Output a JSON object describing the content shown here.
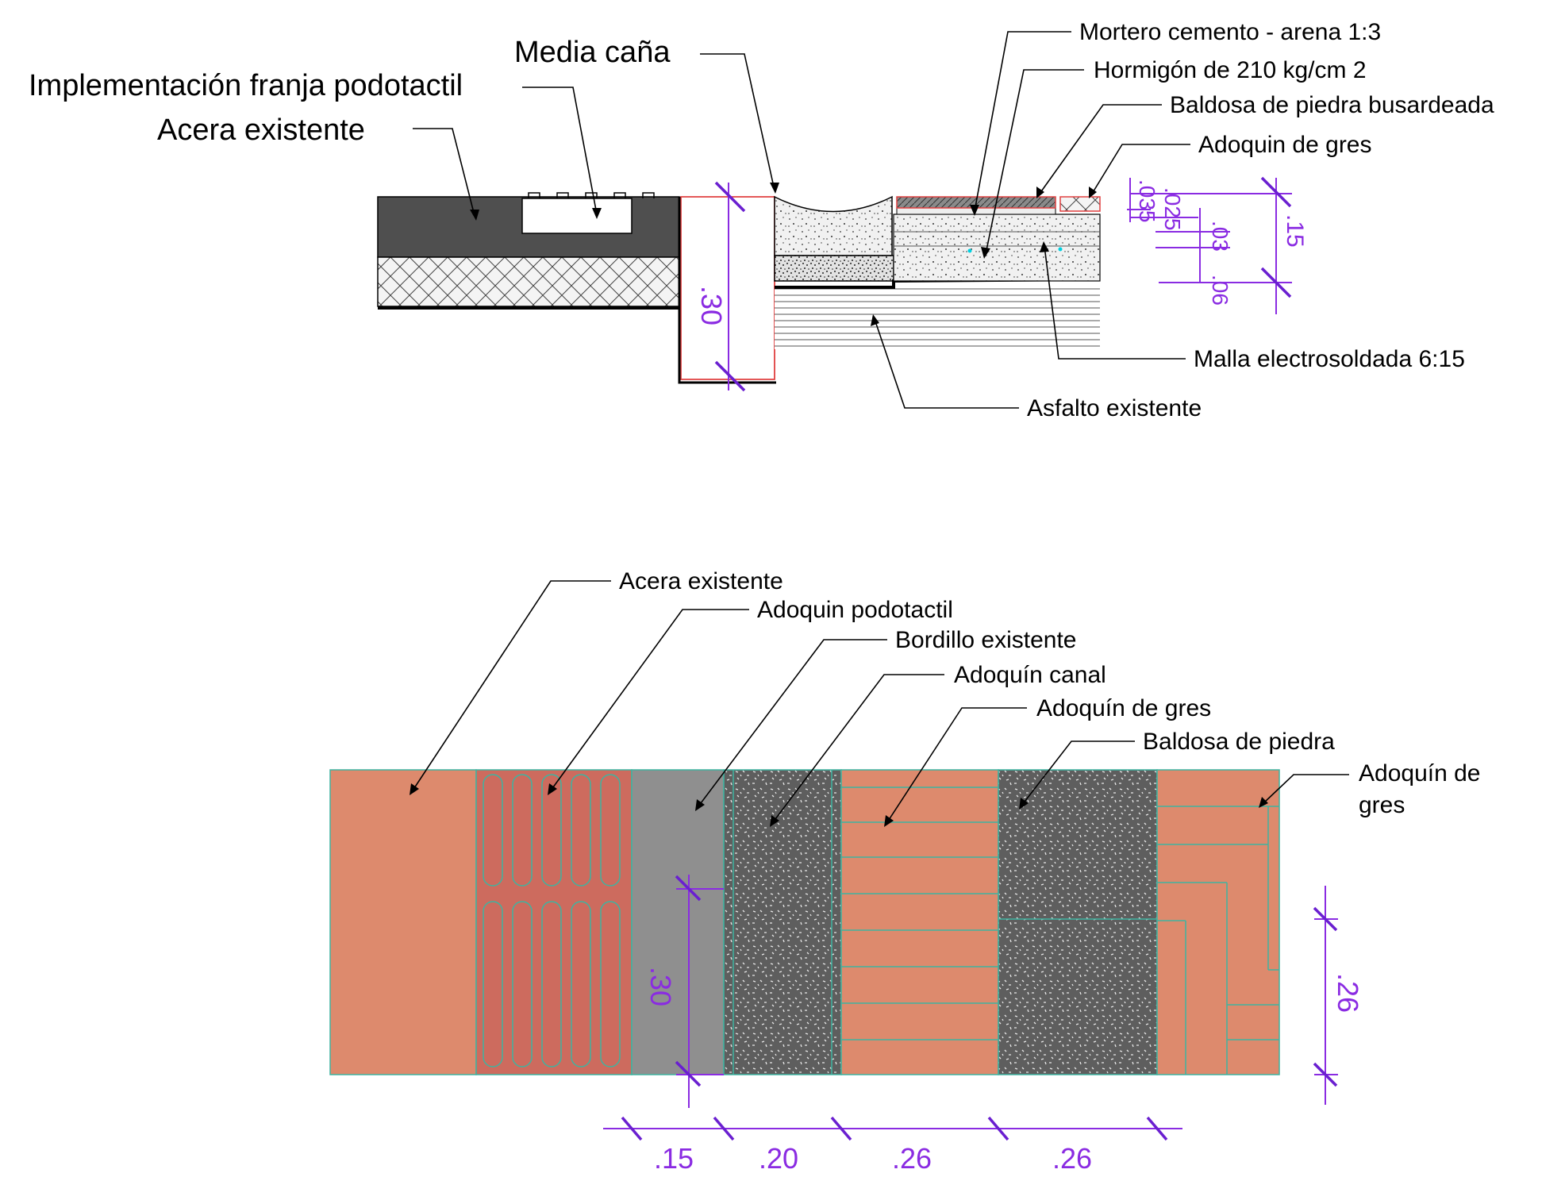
{
  "section": {
    "labels": {
      "implementacion": "Implementación franja podotactil",
      "media_cana": "Media caña",
      "acera": "Acera existente",
      "mortero": "Mortero cemento - arena 1:3",
      "hormigon": "Hormigón de 210 kg/cm 2",
      "baldosa": "Baldosa de piedra busardeada",
      "adoquin": "Adoquin de gres",
      "malla": "Malla electrosoldada 6:15",
      "asfalto": "Asfalto existente"
    },
    "dims": {
      "curb_height": ".30",
      "d035": ".035",
      "d025": ".025",
      "d03": ".03",
      "d06": ".06",
      "d15": ".15"
    }
  },
  "plan": {
    "labels": {
      "acera": "Acera existente",
      "podotactil": "Adoquin podotactil",
      "bordillo": "Bordillo existente",
      "canal": "Adoquín canal",
      "gres1": "Adoquín  de gres",
      "baldosa": "Baldosa de piedra",
      "gres2_l1": "Adoquín de",
      "gres2_l2": "gres"
    },
    "dims": {
      "height_left": ".30",
      "height_right": ".26",
      "w1": ".15",
      "w2": ".20",
      "w3": ".26",
      "w4": ".26"
    }
  },
  "colors": {
    "brick": "#dd8a6d",
    "tactile": "#cd6b5e",
    "curb_gray": "#8f8f8f",
    "concrete_dark": "#5e5e5e",
    "dimension": "#8a2be2",
    "joint": "#3fb3a0",
    "outline_red": "#e04040"
  }
}
